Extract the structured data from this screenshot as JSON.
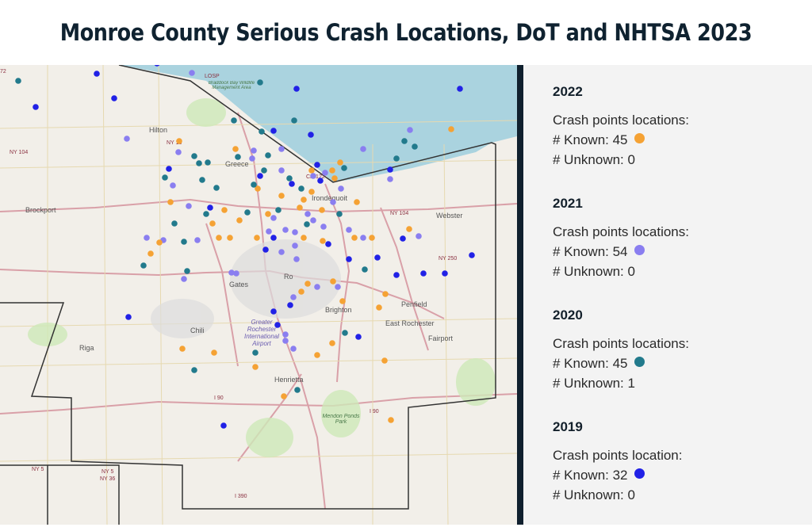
{
  "title": "Monroe County Serious Crash Locations, DoT and NHTSA 2023",
  "map": {
    "places": {
      "hilton": "Hilton",
      "greece": "Greece",
      "brockport": "Brockport",
      "irondequoit": "Irondequoit",
      "webster": "Webster",
      "gates": "Gates",
      "chili": "Chili",
      "riga": "Riga",
      "brighton": "Brighton",
      "penfield": "Penfield",
      "east_rochester": "East Rochester",
      "fairport": "Fairport",
      "henrietta": "Henrietta",
      "rochester": "Ro",
      "airport": "Greater Rochester International Airport",
      "mendon": "Mendon Ponds Park",
      "braddock": "Braddock Bay Wildlife Management Area"
    },
    "roads": {
      "ny104w": "NY 104",
      "ny18": "NY 18",
      "cr122": "CR 122",
      "ny104e": "NY 104",
      "ny250": "NY 250",
      "i90a": "I 90",
      "i90b": "I 90",
      "i390": "I 390",
      "ny5": "NY 5",
      "ny5b": "NY 5",
      "ny36": "NY 36",
      "losp": "LOSP",
      "r72": "72"
    }
  },
  "legend": [
    {
      "year": "2022",
      "heading": "Crash points locations:",
      "known": "# Known: 45",
      "unknown": "# Unknown: 0",
      "color": "#f5a234"
    },
    {
      "year": "2021",
      "heading": "Crash points locations:",
      "known": "# Known: 54",
      "unknown": "# Unknown: 0",
      "color": "#8a7ef0"
    },
    {
      "year": "2020",
      "heading": "Crash points locations:",
      "known": "# Known: 45",
      "unknown": "# Unknown: 1",
      "color": "#227a8c"
    },
    {
      "year": "2019",
      "heading": "Crash points location:",
      "known": "# Known: 32",
      "unknown": "# Unknown: 0",
      "color": "#2121e6"
    }
  ]
}
